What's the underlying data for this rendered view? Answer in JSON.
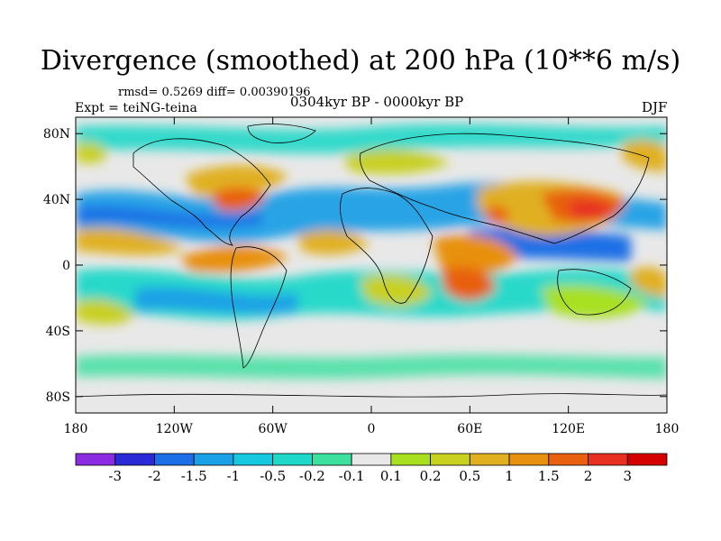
{
  "title": "Divergence (smoothed) at 200 hPa (10**6 m/s)",
  "stats": "rmsd= 0.5269 diff= 0.00390196",
  "experiment": "Expt = teiNG-teina",
  "period": "0304kyr BP - 0000kyr BP",
  "season": "DJF",
  "map": {
    "projection": "cylindrical-equidistant",
    "lon_range": [
      -180,
      180
    ],
    "lat_range": [
      -90,
      90
    ],
    "lat_ticks": [
      {
        "value": 80,
        "label": "80N"
      },
      {
        "value": 40,
        "label": "40N"
      },
      {
        "value": 0,
        "label": "0"
      },
      {
        "value": -40,
        "label": "40S"
      },
      {
        "value": -80,
        "label": "80S"
      }
    ],
    "lon_ticks": [
      {
        "value": -180,
        "label": "180"
      },
      {
        "value": -120,
        "label": "120W"
      },
      {
        "value": -60,
        "label": "60W"
      },
      {
        "value": 0,
        "label": "0"
      },
      {
        "value": 60,
        "label": "60E"
      },
      {
        "value": 120,
        "label": "120E"
      },
      {
        "value": 180,
        "label": "180"
      }
    ],
    "features": [
      {
        "name": "asia-positive-max",
        "lon": 135,
        "lat": 30,
        "level": 3
      },
      {
        "name": "india-positive",
        "lon": 77,
        "lat": 30,
        "level": 2
      },
      {
        "name": "arabia-positive",
        "lon": 55,
        "lat": 20,
        "level": 1
      },
      {
        "name": "east-africa-positive",
        "lon": 58,
        "lat": -12,
        "level": 2
      },
      {
        "name": "south-atlantic-positive",
        "lon": -40,
        "lat": 15,
        "level": 1
      },
      {
        "name": "brazil-positive",
        "lon": -75,
        "lat": 0,
        "level": 1.5
      },
      {
        "name": "north-america-positive",
        "lon": -90,
        "lat": 35,
        "level": 1
      },
      {
        "name": "indonesia-negative",
        "lon": 110,
        "lat": 10,
        "level": -1.5
      },
      {
        "name": "pacific-negative",
        "lon": -150,
        "lat": 35,
        "level": -1
      },
      {
        "name": "southern-ocean-negative",
        "lon": -120,
        "lat": -30,
        "level": -1
      }
    ]
  },
  "colorbar": {
    "colors": [
      "#8b2be2",
      "#2a2ad6",
      "#1c6fe6",
      "#1aa0e6",
      "#16c8e0",
      "#20d8c8",
      "#3ee0a0",
      "#e8e8e8",
      "#a8e020",
      "#c8d020",
      "#e0b020",
      "#e89010",
      "#e86010",
      "#e83020",
      "#d40000"
    ],
    "labels": [
      "-3",
      "-2",
      "-1.5",
      "-1",
      "-0.5",
      "-0.2",
      "-0.1",
      "0.1",
      "0.2",
      "0.5",
      "1",
      "1.5",
      "2",
      "3"
    ]
  }
}
